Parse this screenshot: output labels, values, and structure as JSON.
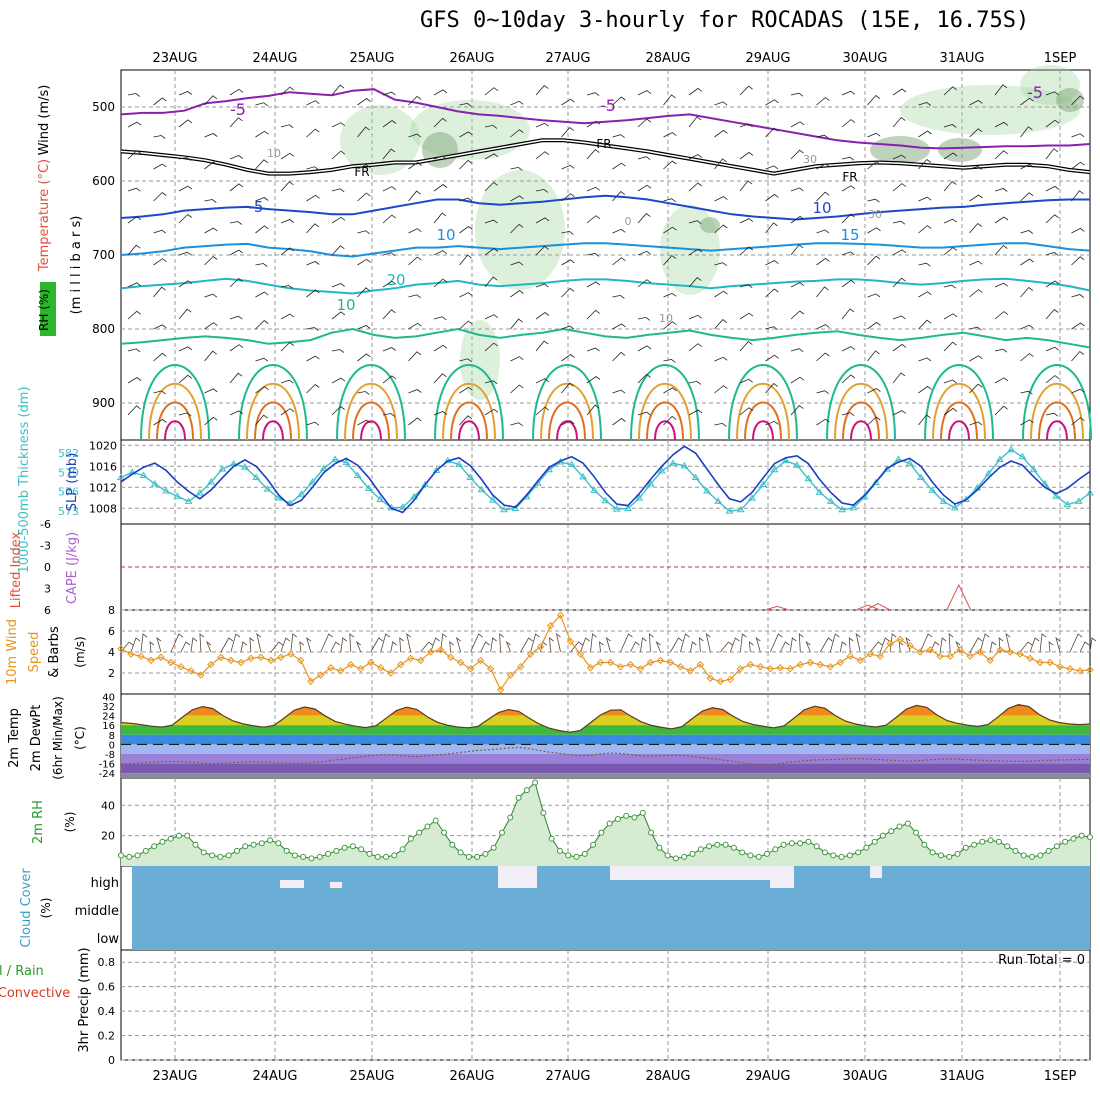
{
  "chart_data": {
    "type": "line",
    "title": "GFS 0~10day 3-hourly for ROCADAS (15E, 16.75S)",
    "date_labels": [
      "23AUG",
      "24AUG",
      "25AUG",
      "26AUG",
      "27AUG",
      "28AUG",
      "29AUG",
      "30AUG",
      "31AUG",
      "1SEP"
    ],
    "colors": {
      "grid": "#999999",
      "rh_fill": "#9fd39a",
      "cloud": "#6aaed6",
      "thickness": "#3cc0c8",
      "slp": "#1a3fc0",
      "wind": "#e8951c",
      "dewpt": "#8b6fb8"
    },
    "panels": {
      "upper_air": {
        "ylabel_parts": [
          "RH (%)",
          "Temperature (°C)",
          "Wind (m/s)"
        ],
        "ylabel_units": "(m i l l i b a r s)",
        "y_ticks": [
          "500",
          "600",
          "700",
          "800",
          "900"
        ],
        "y_range_mb": [
          450,
          950
        ],
        "contour_labels": [
          "-5",
          "-5",
          "FR",
          "FR",
          "FR",
          "-5",
          "-5",
          "10",
          "10",
          "15",
          "20",
          "10",
          "0",
          "30",
          "30",
          "10",
          "10"
        ],
        "isotherms": [
          {
            "label": "-5",
            "values": [
              510,
              508,
              508,
              505,
              495,
              492,
              488,
              485,
              480,
              482,
              484,
              478,
              476,
              490,
              494,
              500,
              506,
              510,
              512,
              515,
              518,
              520,
              522,
              520,
              518,
              515,
              512,
              510,
              515,
              520,
              525,
              530,
              535,
              540,
              545,
              548,
              550,
              552,
              555,
              556,
              555,
              554,
              553,
              553,
              552,
              552,
              550
            ]
          },
          {
            "label": "FR",
            "values": [
              560,
              562,
              565,
              568,
              572,
              578,
              585,
              590,
              590,
              588,
              585,
              580,
              578,
              575,
              575,
              570,
              565,
              560,
              555,
              550,
              545,
              545,
              548,
              552,
              556,
              560,
              565,
              570,
              575,
              580,
              585,
              590,
              585,
              580,
              578,
              576,
              575,
              576,
              578,
              580,
              582,
              580,
              578,
              578,
              580,
              585,
              588
            ]
          },
          {
            "label": "5",
            "values": [
              650,
              648,
              645,
              640,
              638,
              636,
              635,
              638,
              640,
              642,
              645,
              645,
              640,
              635,
              630,
              625,
              625,
              630,
              632,
              630,
              628,
              625,
              622,
              620,
              622,
              625,
              630,
              635,
              640,
              645,
              648,
              650,
              652,
              650,
              648,
              645,
              642,
              640,
              638,
              636,
              635,
              632,
              630,
              628,
              626,
              625,
              625
            ]
          },
          {
            "label": "10",
            "values": [
              700,
              698,
              695,
              690,
              688,
              686,
              685,
              690,
              692,
              695,
              700,
              702,
              698,
              694,
              690,
              690,
              688,
              690,
              692,
              690,
              688,
              686,
              684,
              684,
              686,
              688,
              690,
              692,
              694,
              692,
              690,
              688,
              686,
              684,
              684,
              685,
              686,
              688,
              690,
              690,
              688,
              686,
              684,
              684,
              688,
              692,
              694
            ]
          },
          {
            "label": "15",
            "values": [
              745,
              742,
              740,
              738,
              735,
              732,
              735,
              740,
              745,
              748,
              750,
              752,
              748,
              745,
              740,
              738,
              735,
              740,
              742,
              740,
              738,
              735,
              733,
              733,
              735,
              738,
              740,
              742,
              745,
              742,
              740,
              738,
              736,
              735,
              733,
              733,
              735,
              738,
              740,
              738,
              735,
              733,
              732,
              735,
              738,
              742,
              748
            ]
          },
          {
            "label": "20",
            "values": [
              820,
              818,
              815,
              812,
              810,
              812,
              815,
              820,
              818,
              815,
              805,
              800,
              808,
              812,
              810,
              805,
              800,
              808,
              812,
              808,
              805,
              800,
              805,
              810,
              812,
              808,
              805,
              802,
              808,
              812,
              815,
              812,
              808,
              805,
              803,
              808,
              812,
              815,
              812,
              808,
              805,
              810,
              815,
              812,
              815,
              820,
              825
            ]
          }
        ]
      },
      "thickness_slp": {
        "ylabel_thickness": "1000-500mb Thickness (dm)",
        "ylabel_slp": "SLP (mb)",
        "left_ticks": [
          "582",
          "579",
          "576",
          "573"
        ],
        "right_ticks": [
          "1020",
          "1016",
          "1012",
          "1008"
        ],
        "thickness_range": [
          571,
          584
        ],
        "slp_range": [
          1005,
          1021
        ],
        "thickness": [
          578.2,
          579.0,
          578.5,
          577.2,
          576.1,
          575.3,
          574.5,
          575.8,
          577.5,
          579.5,
          580.3,
          579.8,
          578.2,
          576.4,
          575.0,
          574.2,
          575.6,
          577.5,
          579.6,
          581.0,
          580.5,
          578.5,
          576.5,
          574.8,
          573.5,
          573.6,
          575.2,
          577.1,
          579.3,
          580.8,
          580.2,
          578.2,
          576.3,
          574.7,
          573.2,
          573.4,
          575.2,
          577.3,
          579.4,
          580.6,
          580.2,
          578.3,
          576.2,
          574.6,
          573.3,
          573.4,
          575.0,
          577.2,
          579.2,
          580.4,
          580.0,
          578.2,
          576.1,
          574.5,
          573.0,
          573.2,
          575.0,
          577.1,
          579.4,
          580.8,
          580.1,
          578.0,
          575.9,
          574.5,
          573.2,
          573.5,
          575.2,
          577.4,
          579.5,
          581.0,
          580.4,
          578.2,
          576.2,
          574.5,
          573.5,
          574.8,
          576.6,
          578.8,
          581.0,
          582.5,
          581.4,
          579.4,
          577.2,
          575.3,
          574.0,
          574.5,
          575.8
        ],
        "slp": [
          1013.0,
          1014.5,
          1015.8,
          1016.6,
          1015.2,
          1013.0,
          1011.2,
          1009.8,
          1011.5,
          1013.8,
          1016.0,
          1017.2,
          1016.0,
          1013.5,
          1010.5,
          1008.5,
          1009.5,
          1012.0,
          1014.8,
          1016.5,
          1017.5,
          1016.2,
          1013.8,
          1010.8,
          1008.0,
          1007.2,
          1009.5,
          1012.5,
          1015.2,
          1017.0,
          1017.6,
          1016.1,
          1013.5,
          1010.5,
          1008.6,
          1008.2,
          1010.5,
          1013.2,
          1015.8,
          1017.0,
          1017.8,
          1016.6,
          1014.0,
          1011.0,
          1008.8,
          1008.5,
          1010.8,
          1013.5,
          1016.0,
          1018.2,
          1019.8,
          1018.5,
          1015.5,
          1012.5,
          1009.8,
          1009.2,
          1011.0,
          1013.8,
          1016.5,
          1017.6,
          1018.0,
          1016.5,
          1013.5,
          1011.0,
          1009.0,
          1008.6,
          1010.5,
          1013.0,
          1015.6,
          1016.8,
          1017.5,
          1016.0,
          1013.0,
          1010.5,
          1008.8,
          1009.6,
          1011.5,
          1013.8,
          1015.8,
          1017.0,
          1016.2,
          1014.0,
          1012.0,
          1010.8,
          1011.8,
          1013.5,
          1015.0
        ]
      },
      "cape_li": {
        "ylabel_li": "Lifted Index",
        "ylabel_cape": "CAPE (J/kg)",
        "ticks": [
          "-6",
          "-3",
          "0",
          "3",
          "6"
        ],
        "li_range": [
          -6,
          6
        ],
        "cape_spikes": [
          {
            "index": 65,
            "value": 0.5
          },
          {
            "index": 74,
            "value": 0.7
          },
          {
            "index": 75,
            "value": 0.9
          },
          {
            "index": 83,
            "value": 3.5
          }
        ]
      },
      "wind10m": {
        "ylabel": [
          "10m Wind",
          "Speed",
          "& Barbs"
        ],
        "units": "(m/s)",
        "ticks": [
          "8",
          "6",
          "4",
          "2"
        ],
        "range": [
          0,
          8
        ],
        "speed": [
          4.3,
          3.8,
          3.6,
          3.2,
          3.5,
          3.0,
          2.6,
          2.2,
          1.8,
          2.8,
          3.5,
          3.2,
          3.0,
          3.4,
          3.5,
          3.2,
          3.5,
          3.8,
          3.2,
          1.2,
          1.8,
          2.5,
          2.2,
          2.8,
          2.4,
          3.0,
          2.5,
          2.0,
          2.8,
          3.4,
          3.2,
          4.0,
          4.2,
          3.5,
          3.0,
          2.4,
          3.2,
          2.4,
          0.4,
          1.8,
          2.6,
          3.8,
          4.5,
          6.5,
          7.5,
          5.0,
          3.8,
          2.5,
          3.0,
          3.0,
          2.6,
          2.8,
          2.4,
          3.0,
          3.2,
          3.0,
          2.6,
          2.2,
          2.8,
          1.5,
          1.2,
          1.4,
          2.4,
          2.8,
          2.6,
          2.4,
          2.5,
          2.4,
          2.8,
          3.0,
          2.8,
          2.6,
          3.0,
          3.6,
          3.2,
          3.8,
          3.6,
          4.8,
          5.2,
          4.6,
          4.0,
          4.2,
          3.6,
          3.6,
          4.2,
          3.6,
          4.0,
          3.2,
          4.2,
          4.0,
          3.8,
          3.4,
          3.0,
          3.0,
          2.6,
          2.4,
          2.2,
          2.3
        ]
      },
      "temp2m": {
        "ylabel": [
          "2m Temp",
          "2m DewPt",
          "(6hr Min/Max)"
        ],
        "units": "(°C)",
        "ticks": [
          "40",
          "32",
          "24",
          "16",
          "8",
          "0",
          "-8",
          "-16",
          "-24"
        ],
        "range": [
          -28,
          42
        ],
        "temp": [
          18.2,
          17.5,
          16.4,
          15.2,
          14.4,
          16.0,
          22.5,
          28.8,
          31.5,
          29.8,
          24.0,
          19.5,
          17.0,
          15.5,
          14.3,
          15.8,
          22.0,
          28.5,
          31.2,
          29.5,
          23.8,
          19.2,
          16.8,
          15.2,
          14.0,
          15.6,
          21.8,
          28.2,
          31.0,
          29.2,
          23.2,
          18.5,
          16.0,
          14.5,
          13.8,
          15.0,
          20.8,
          26.5,
          29.0,
          27.5,
          22.0,
          17.0,
          13.5,
          11.5,
          10.2,
          11.5,
          17.8,
          24.5,
          28.5,
          28.8,
          23.5,
          18.8,
          15.8,
          14.2,
          13.0,
          14.8,
          21.5,
          27.8,
          30.5,
          29.0,
          23.5,
          19.0,
          16.5,
          15.0,
          13.8,
          15.5,
          22.0,
          28.8,
          31.8,
          30.2,
          24.2,
          19.5,
          17.0,
          15.5,
          14.5,
          16.0,
          22.5,
          29.5,
          32.5,
          30.8,
          24.5,
          19.8,
          17.5,
          16.0,
          15.0,
          16.5,
          23.0,
          30.0,
          33.2,
          31.5,
          25.0,
          20.5,
          18.2,
          17.0,
          16.5,
          17.0
        ],
        "dewpt": [
          -16.5,
          -16.0,
          -15.5,
          -15.0,
          -14.6,
          -14.2,
          -14.6,
          -15.0,
          -15.6,
          -16.0,
          -15.6,
          -15.2,
          -14.8,
          -14.5,
          -14.8,
          -15.2,
          -15.6,
          -15.8,
          -15.4,
          -15.0,
          -14.2,
          -13.0,
          -12.0,
          -10.8,
          -9.8,
          -9.0,
          -8.6,
          -9.0,
          -9.8,
          -10.2,
          -9.5,
          -8.8,
          -8.0,
          -7.0,
          -6.0,
          -5.0,
          -4.5,
          -3.8,
          -3.0,
          -2.5,
          -3.5,
          -5.0,
          -6.5,
          -7.5,
          -8.5,
          -9.5,
          -9.0,
          -8.0,
          -7.2,
          -7.6,
          -8.6,
          -9.5,
          -9.8,
          -9.5,
          -9.0,
          -9.2,
          -10.0,
          -11.0,
          -12.0,
          -13.0,
          -14.0,
          -15.5,
          -16.5,
          -17.0,
          -16.5,
          -15.5,
          -14.5,
          -13.5,
          -13.0,
          -12.8,
          -12.5,
          -12.0,
          -11.8,
          -12.0,
          -12.5,
          -13.0,
          -13.5,
          -14.0,
          -13.6,
          -13.0,
          -12.5,
          -12.0,
          -12.2,
          -12.8,
          -13.2,
          -13.5,
          -13.8,
          -14.0,
          -14.2,
          -14.0,
          -13.6,
          -13.2,
          -13.0,
          -12.8,
          -12.6,
          -12.5
        ]
      },
      "rh2m": {
        "ylabel": "2m RH",
        "units": "(%)",
        "ticks": [
          "40",
          "20"
        ],
        "range": [
          0,
          58
        ],
        "values": [
          7,
          6,
          7,
          10,
          13,
          16,
          18,
          20,
          20,
          14,
          9,
          7,
          6,
          7,
          10,
          13,
          14,
          15,
          17,
          15,
          10,
          7,
          6,
          5,
          6,
          8,
          10,
          12,
          13,
          11,
          8,
          6,
          6,
          7,
          11,
          18,
          22,
          26,
          30,
          22,
          14,
          9,
          6,
          6,
          8,
          12,
          22,
          32,
          45,
          50,
          55,
          35,
          18,
          10,
          7,
          6,
          8,
          14,
          22,
          28,
          31,
          33,
          32,
          35,
          22,
          12,
          7,
          5,
          6,
          8,
          11,
          13,
          14,
          14,
          12,
          9,
          7,
          6,
          8,
          11,
          14,
          15,
          15,
          16,
          13,
          9,
          7,
          6,
          7,
          9,
          12,
          16,
          20,
          23,
          26,
          28,
          22,
          14,
          9,
          7,
          6,
          8,
          12,
          14,
          16,
          17,
          16,
          13,
          10,
          7,
          6,
          7,
          10,
          13,
          16,
          18,
          20,
          19
        ]
      },
      "cloud": {
        "ylabel": "Cloud Cover",
        "units": "(%)",
        "levels": [
          "high",
          "middle",
          "low"
        ]
      },
      "precip": {
        "ylabel_parts": [
          "Total / Rain",
          "Convective"
        ],
        "ylabel_axis": "3hr Precip (mm)",
        "ticks": [
          "0.8",
          "0.6",
          "0.4",
          "0.2",
          "0"
        ],
        "range": [
          0,
          0.9
        ],
        "run_total": "Run Total = 0"
      }
    }
  }
}
